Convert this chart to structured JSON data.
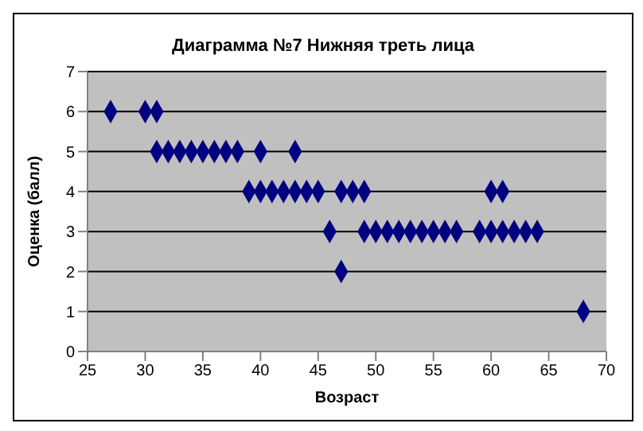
{
  "chart_data": {
    "type": "scatter",
    "title": "Диаграмма №7 Нижняя треть лица",
    "xlabel": "Возраст",
    "ylabel": "Оценка (балл)",
    "x": [
      27,
      30,
      31,
      31,
      32,
      33,
      34,
      35,
      36,
      37,
      38,
      40,
      43,
      39,
      40,
      41,
      42,
      43,
      44,
      45,
      47,
      48,
      49,
      60,
      61,
      46,
      49,
      50,
      51,
      52,
      53,
      54,
      55,
      56,
      57,
      59,
      60,
      61,
      62,
      63,
      64,
      47,
      68
    ],
    "series": [
      {
        "color": "#000080",
        "values": [
          6,
          6,
          6,
          5,
          5,
          5,
          5,
          5,
          5,
          5,
          5,
          5,
          5,
          4,
          4,
          4,
          4,
          4,
          4,
          4,
          4,
          4,
          4,
          4,
          4,
          3,
          3,
          3,
          3,
          3,
          3,
          3,
          3,
          3,
          3,
          3,
          3,
          3,
          3,
          3,
          3,
          2,
          1
        ]
      }
    ],
    "xlim": [
      25,
      70
    ],
    "xticks": [
      25,
      30,
      35,
      40,
      45,
      50,
      55,
      60,
      65,
      70
    ],
    "ylim": [
      0,
      7
    ],
    "yticks": [
      0,
      1,
      2,
      3,
      4,
      5,
      6,
      7
    ],
    "grid": "y",
    "marker": "diamond"
  }
}
